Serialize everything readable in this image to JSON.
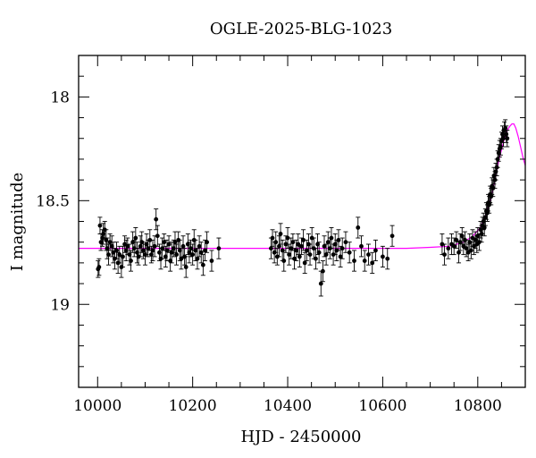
{
  "chart_data": {
    "type": "scatter",
    "title": "OGLE-2025-BLG-1023",
    "xlabel": "HJD - 2450000",
    "ylabel": "I magnitude",
    "xlim": [
      9960,
      10900
    ],
    "ylim": [
      19.4,
      17.8
    ],
    "y_inverted": true,
    "x_ticks": [
      10000,
      10200,
      10400,
      10600,
      10800
    ],
    "y_ticks": [
      18,
      18.5,
      19
    ],
    "x_tick_labels": [
      "10000",
      "10200",
      "10400",
      "10600",
      "10800"
    ],
    "y_tick_labels": [
      "18",
      "18.5",
      "19"
    ],
    "minor_x_step": 50,
    "minor_y_step": 0.1,
    "grid": false,
    "colors": {
      "points": "#000000",
      "model": "#ff00ff",
      "frame": "#000000"
    },
    "series": [
      {
        "marker": "filled-circle",
        "points": [
          [
            10001,
            18.83,
            0.04
          ],
          [
            10003,
            18.82,
            0.04
          ],
          [
            10005,
            18.62,
            0.04
          ],
          [
            10007,
            18.7,
            0.04
          ],
          [
            10010,
            18.68,
            0.04
          ],
          [
            10012,
            18.66,
            0.05
          ],
          [
            10015,
            18.64,
            0.04
          ],
          [
            10018,
            18.69,
            0.05
          ],
          [
            10020,
            18.73,
            0.05
          ],
          [
            10023,
            18.76,
            0.05
          ],
          [
            10026,
            18.7,
            0.04
          ],
          [
            10030,
            18.72,
            0.05
          ],
          [
            10033,
            18.75,
            0.05
          ],
          [
            10036,
            18.78,
            0.05
          ],
          [
            10040,
            18.74,
            0.04
          ],
          [
            10043,
            18.8,
            0.05
          ],
          [
            10046,
            18.76,
            0.04
          ],
          [
            10050,
            18.82,
            0.05
          ],
          [
            10053,
            18.77,
            0.05
          ],
          [
            10057,
            18.71,
            0.04
          ],
          [
            10060,
            18.74,
            0.05
          ],
          [
            10063,
            18.72,
            0.04
          ],
          [
            10067,
            18.76,
            0.05
          ],
          [
            10070,
            18.79,
            0.05
          ],
          [
            10074,
            18.7,
            0.05
          ],
          [
            10077,
            18.73,
            0.04
          ],
          [
            10080,
            18.68,
            0.05
          ],
          [
            10083,
            18.75,
            0.05
          ],
          [
            10086,
            18.77,
            0.04
          ],
          [
            10090,
            18.72,
            0.05
          ],
          [
            10093,
            18.7,
            0.05
          ],
          [
            10096,
            18.74,
            0.04
          ],
          [
            10100,
            18.76,
            0.05
          ],
          [
            10103,
            18.71,
            0.05
          ],
          [
            10106,
            18.73,
            0.04
          ],
          [
            10110,
            18.69,
            0.05
          ],
          [
            10113,
            18.76,
            0.04
          ],
          [
            10116,
            18.74,
            0.05
          ],
          [
            10120,
            18.72,
            0.05
          ],
          [
            10123,
            18.59,
            0.05
          ],
          [
            10126,
            18.67,
            0.05
          ],
          [
            10130,
            18.75,
            0.04
          ],
          [
            10133,
            18.78,
            0.05
          ],
          [
            10136,
            18.73,
            0.05
          ],
          [
            10140,
            18.7,
            0.04
          ],
          [
            10143,
            18.77,
            0.05
          ],
          [
            10146,
            18.74,
            0.05
          ],
          [
            10150,
            18.71,
            0.04
          ],
          [
            10153,
            18.79,
            0.05
          ],
          [
            10156,
            18.75,
            0.05
          ],
          [
            10160,
            18.73,
            0.04
          ],
          [
            10163,
            18.7,
            0.05
          ],
          [
            10166,
            18.76,
            0.05
          ],
          [
            10170,
            18.69,
            0.04
          ],
          [
            10173,
            18.74,
            0.05
          ],
          [
            10176,
            18.78,
            0.05
          ],
          [
            10180,
            18.72,
            0.05
          ],
          [
            10183,
            18.77,
            0.04
          ],
          [
            10186,
            18.82,
            0.05
          ],
          [
            10190,
            18.71,
            0.05
          ],
          [
            10193,
            18.75,
            0.05
          ],
          [
            10196,
            18.73,
            0.04
          ],
          [
            10200,
            18.76,
            0.05
          ],
          [
            10203,
            18.69,
            0.05
          ],
          [
            10206,
            18.74,
            0.05
          ],
          [
            10210,
            18.78,
            0.05
          ],
          [
            10214,
            18.72,
            0.05
          ],
          [
            10218,
            18.75,
            0.05
          ],
          [
            10222,
            18.81,
            0.05
          ],
          [
            10226,
            18.74,
            0.05
          ],
          [
            10230,
            18.7,
            0.05
          ],
          [
            10240,
            18.79,
            0.05
          ],
          [
            10255,
            18.73,
            0.05
          ],
          [
            10365,
            18.73,
            0.05
          ],
          [
            10368,
            18.68,
            0.04
          ],
          [
            10372,
            18.75,
            0.05
          ],
          [
            10375,
            18.7,
            0.05
          ],
          [
            10378,
            18.77,
            0.04
          ],
          [
            10382,
            18.72,
            0.05
          ],
          [
            10385,
            18.66,
            0.05
          ],
          [
            10389,
            18.74,
            0.05
          ],
          [
            10392,
            18.79,
            0.05
          ],
          [
            10396,
            18.71,
            0.04
          ],
          [
            10400,
            18.68,
            0.05
          ],
          [
            10403,
            18.76,
            0.05
          ],
          [
            10407,
            18.73,
            0.05
          ],
          [
            10411,
            18.7,
            0.04
          ],
          [
            10414,
            18.78,
            0.05
          ],
          [
            10418,
            18.74,
            0.05
          ],
          [
            10422,
            18.71,
            0.05
          ],
          [
            10425,
            18.77,
            0.05
          ],
          [
            10429,
            18.72,
            0.04
          ],
          [
            10433,
            18.69,
            0.05
          ],
          [
            10436,
            18.8,
            0.05
          ],
          [
            10440,
            18.74,
            0.05
          ],
          [
            10444,
            18.71,
            0.05
          ],
          [
            10447,
            18.76,
            0.05
          ],
          [
            10451,
            18.68,
            0.05
          ],
          [
            10455,
            18.73,
            0.05
          ],
          [
            10459,
            18.78,
            0.05
          ],
          [
            10463,
            18.71,
            0.05
          ],
          [
            10466,
            18.75,
            0.05
          ],
          [
            10470,
            18.9,
            0.06
          ],
          [
            10474,
            18.84,
            0.05
          ],
          [
            10477,
            18.72,
            0.05
          ],
          [
            10481,
            18.76,
            0.05
          ],
          [
            10485,
            18.7,
            0.05
          ],
          [
            10489,
            18.73,
            0.05
          ],
          [
            10492,
            18.68,
            0.05
          ],
          [
            10496,
            18.76,
            0.05
          ],
          [
            10500,
            18.71,
            0.05
          ],
          [
            10503,
            18.74,
            0.05
          ],
          [
            10507,
            18.69,
            0.05
          ],
          [
            10511,
            18.77,
            0.05
          ],
          [
            10515,
            18.73,
            0.05
          ],
          [
            10522,
            18.7,
            0.05
          ],
          [
            10530,
            18.75,
            0.05
          ],
          [
            10540,
            18.79,
            0.05
          ],
          [
            10548,
            18.63,
            0.05
          ],
          [
            10555,
            18.72,
            0.05
          ],
          [
            10562,
            18.79,
            0.05
          ],
          [
            10570,
            18.76,
            0.05
          ],
          [
            10578,
            18.8,
            0.05
          ],
          [
            10585,
            18.74,
            0.05
          ],
          [
            10600,
            18.77,
            0.05
          ],
          [
            10610,
            18.78,
            0.05
          ],
          [
            10620,
            18.67,
            0.05
          ],
          [
            10725,
            18.71,
            0.05
          ],
          [
            10730,
            18.76,
            0.05
          ],
          [
            10738,
            18.73,
            0.05
          ],
          [
            10745,
            18.71,
            0.05
          ],
          [
            10750,
            18.72,
            0.04
          ],
          [
            10755,
            18.69,
            0.04
          ],
          [
            10760,
            18.75,
            0.05
          ],
          [
            10763,
            18.7,
            0.04
          ],
          [
            10767,
            18.67,
            0.04
          ],
          [
            10770,
            18.72,
            0.04
          ],
          [
            10773,
            18.69,
            0.04
          ],
          [
            10776,
            18.73,
            0.04
          ],
          [
            10780,
            18.75,
            0.04
          ],
          [
            10783,
            18.7,
            0.04
          ],
          [
            10786,
            18.74,
            0.04
          ],
          [
            10789,
            18.68,
            0.04
          ],
          [
            10792,
            18.72,
            0.04
          ],
          [
            10795,
            18.69,
            0.04
          ],
          [
            10798,
            18.71,
            0.04
          ],
          [
            10800,
            18.67,
            0.04
          ],
          [
            10803,
            18.7,
            0.04
          ],
          [
            10806,
            18.64,
            0.04
          ],
          [
            10808,
            18.66,
            0.04
          ],
          [
            10810,
            18.62,
            0.04
          ],
          [
            10812,
            18.6,
            0.04
          ],
          [
            10814,
            18.63,
            0.04
          ],
          [
            10816,
            18.58,
            0.04
          ],
          [
            10818,
            18.55,
            0.04
          ],
          [
            10820,
            18.56,
            0.04
          ],
          [
            10822,
            18.51,
            0.04
          ],
          [
            10824,
            18.52,
            0.04
          ],
          [
            10826,
            18.47,
            0.04
          ],
          [
            10828,
            18.48,
            0.04
          ],
          [
            10830,
            18.43,
            0.04
          ],
          [
            10832,
            18.44,
            0.04
          ],
          [
            10834,
            18.38,
            0.04
          ],
          [
            10836,
            18.4,
            0.04
          ],
          [
            10838,
            18.36,
            0.04
          ],
          [
            10840,
            18.34,
            0.04
          ],
          [
            10842,
            18.3,
            0.04
          ],
          [
            10844,
            18.27,
            0.04
          ],
          [
            10846,
            18.25,
            0.04
          ],
          [
            10848,
            18.24,
            0.04
          ],
          [
            10850,
            18.21,
            0.04
          ],
          [
            10852,
            18.18,
            0.04
          ],
          [
            10854,
            18.2,
            0.04
          ],
          [
            10856,
            18.16,
            0.04
          ],
          [
            10858,
            18.15,
            0.04
          ],
          [
            10860,
            18.18,
            0.04
          ],
          [
            10862,
            18.2,
            0.04
          ]
        ]
      }
    ],
    "model": {
      "curve": "single-lens (PSPL) fit",
      "baseline": 18.73,
      "peak_mag": 18.13,
      "t0": 10875,
      "tE": 35,
      "points": [
        [
          9960,
          18.73
        ],
        [
          10100,
          18.73
        ],
        [
          10300,
          18.73
        ],
        [
          10500,
          18.73
        ],
        [
          10600,
          18.73
        ],
        [
          10650,
          18.73
        ],
        [
          10700,
          18.725
        ],
        [
          10740,
          18.72
        ],
        [
          10770,
          18.7
        ],
        [
          10790,
          18.67
        ],
        [
          10805,
          18.63
        ],
        [
          10815,
          18.58
        ],
        [
          10825,
          18.51
        ],
        [
          10835,
          18.41
        ],
        [
          10845,
          18.3
        ],
        [
          10855,
          18.21
        ],
        [
          10862,
          18.16
        ],
        [
          10868,
          18.14
        ],
        [
          10872,
          18.13
        ],
        [
          10876,
          18.13
        ],
        [
          10880,
          18.15
        ],
        [
          10885,
          18.19
        ],
        [
          10890,
          18.24
        ],
        [
          10895,
          18.29
        ],
        [
          10900,
          18.33
        ]
      ]
    }
  }
}
